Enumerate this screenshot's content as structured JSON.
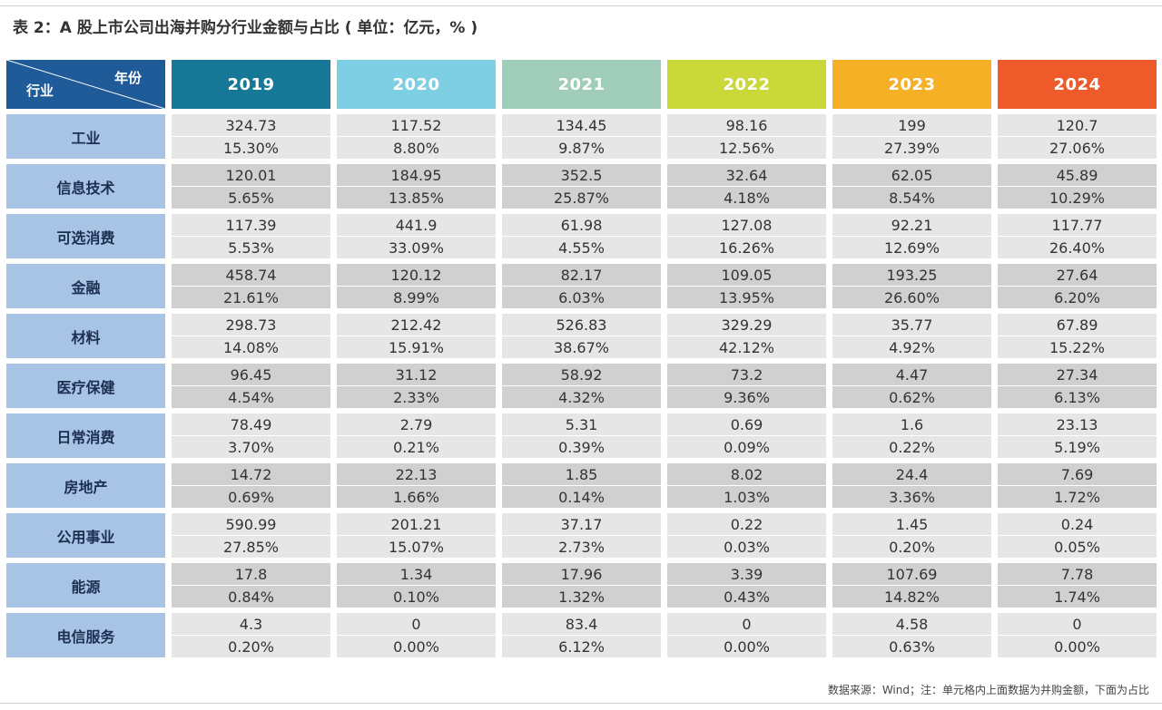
{
  "title": "表 2：A 股上市公司出海并购分行业金额与占比 ( 单位：亿元，% )",
  "header": {
    "corner_year": "年份",
    "corner_industry": "行业",
    "years": [
      "2019",
      "2020",
      "2021",
      "2022",
      "2023",
      "2024"
    ],
    "year_colors": [
      "#167796",
      "#7ecfe4",
      "#9fcdb9",
      "#cbd839",
      "#f5b025",
      "#ef5a2a"
    ]
  },
  "rows": [
    {
      "industry": "工业",
      "amounts": [
        "324.73",
        "117.52",
        "134.45",
        "98.16",
        "199",
        "120.7"
      ],
      "shares": [
        "15.30%",
        "8.80%",
        "9.87%",
        "12.56%",
        "27.39%",
        "27.06%"
      ]
    },
    {
      "industry": "信息技术",
      "amounts": [
        "120.01",
        "184.95",
        "352.5",
        "32.64",
        "62.05",
        "45.89"
      ],
      "shares": [
        "5.65%",
        "13.85%",
        "25.87%",
        "4.18%",
        "8.54%",
        "10.29%"
      ]
    },
    {
      "industry": "可选消费",
      "amounts": [
        "117.39",
        "441.9",
        "61.98",
        "127.08",
        "92.21",
        "117.77"
      ],
      "shares": [
        "5.53%",
        "33.09%",
        "4.55%",
        "16.26%",
        "12.69%",
        "26.40%"
      ]
    },
    {
      "industry": "金融",
      "amounts": [
        "458.74",
        "120.12",
        "82.17",
        "109.05",
        "193.25",
        "27.64"
      ],
      "shares": [
        "21.61%",
        "8.99%",
        "6.03%",
        "13.95%",
        "26.60%",
        "6.20%"
      ]
    },
    {
      "industry": "材料",
      "amounts": [
        "298.73",
        "212.42",
        "526.83",
        "329.29",
        "35.77",
        "67.89"
      ],
      "shares": [
        "14.08%",
        "15.91%",
        "38.67%",
        "42.12%",
        "4.92%",
        "15.22%"
      ]
    },
    {
      "industry": "医疗保健",
      "amounts": [
        "96.45",
        "31.12",
        "58.92",
        "73.2",
        "4.47",
        "27.34"
      ],
      "shares": [
        "4.54%",
        "2.33%",
        "4.32%",
        "9.36%",
        "0.62%",
        "6.13%"
      ]
    },
    {
      "industry": "日常消费",
      "amounts": [
        "78.49",
        "2.79",
        "5.31",
        "0.69",
        "1.6",
        "23.13"
      ],
      "shares": [
        "3.70%",
        "0.21%",
        "0.39%",
        "0.09%",
        "0.22%",
        "5.19%"
      ]
    },
    {
      "industry": "房地产",
      "amounts": [
        "14.72",
        "22.13",
        "1.85",
        "8.02",
        "24.4",
        "7.69"
      ],
      "shares": [
        "0.69%",
        "1.66%",
        "0.14%",
        "1.03%",
        "3.36%",
        "1.72%"
      ]
    },
    {
      "industry": "公用事业",
      "amounts": [
        "590.99",
        "201.21",
        "37.17",
        "0.22",
        "1.45",
        "0.24"
      ],
      "shares": [
        "27.85%",
        "15.07%",
        "2.73%",
        "0.03%",
        "0.20%",
        "0.05%"
      ]
    },
    {
      "industry": "能源",
      "amounts": [
        "17.8",
        "1.34",
        "17.96",
        "3.39",
        "107.69",
        "7.78"
      ],
      "shares": [
        "0.84%",
        "0.10%",
        "1.32%",
        "0.43%",
        "14.82%",
        "1.74%"
      ]
    },
    {
      "industry": "电信服务",
      "amounts": [
        "4.3",
        "0",
        "83.4",
        "0",
        "4.58",
        "0"
      ],
      "shares": [
        "0.20%",
        "0.00%",
        "6.12%",
        "0.00%",
        "0.63%",
        "0.00%"
      ]
    }
  ],
  "footnote": "数据来源：Wind；注：单元格内上面数据为并购金额，下面为占比"
}
